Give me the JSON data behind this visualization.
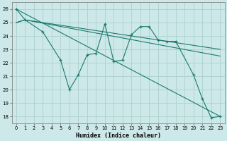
{
  "xlabel": "Humidex (Indice chaleur)",
  "background_color": "#cce8e8",
  "grid_color": "#add0d0",
  "line_color": "#1a7a6e",
  "xlim": [
    -0.5,
    23.5
  ],
  "ylim": [
    17.5,
    26.5
  ],
  "yticks": [
    18,
    19,
    20,
    21,
    22,
    23,
    24,
    25,
    26
  ],
  "xticks": [
    0,
    1,
    2,
    3,
    4,
    5,
    6,
    7,
    8,
    9,
    10,
    11,
    12,
    13,
    14,
    15,
    16,
    17,
    18,
    19,
    20,
    21,
    22,
    23
  ],
  "series": [
    {
      "x": [
        0,
        1,
        3,
        5,
        6,
        7,
        8,
        9,
        10,
        11,
        12,
        13,
        14,
        15,
        16,
        17,
        18,
        20,
        21,
        22,
        23
      ],
      "y": [
        26,
        25.2,
        24.3,
        22.2,
        20.0,
        21.1,
        22.6,
        22.7,
        24.9,
        22.1,
        22.2,
        24.1,
        24.7,
        24.7,
        23.7,
        23.6,
        23.6,
        21.1,
        19.3,
        17.9,
        18.0
      ],
      "marker": true
    },
    {
      "x": [
        0,
        23
      ],
      "y": [
        26,
        18.0
      ],
      "marker": false
    },
    {
      "comment": "line from 0,25 to 1,25.2 to 23,22.5",
      "x": [
        0,
        1,
        23
      ],
      "y": [
        25.0,
        25.2,
        22.5
      ],
      "marker": false
    },
    {
      "comment": "line from 0,25 to 1,25.2 to 23,23",
      "x": [
        0,
        1,
        23
      ],
      "y": [
        25.0,
        25.2,
        23.0
      ],
      "marker": false
    }
  ]
}
